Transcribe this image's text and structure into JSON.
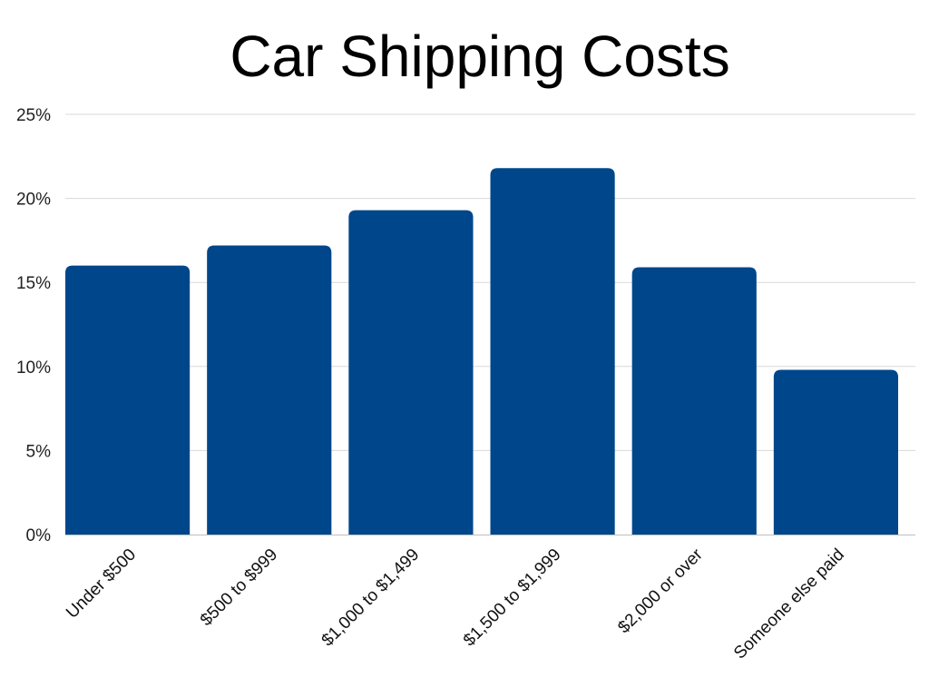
{
  "chart_data": {
    "type": "bar",
    "title": "Car Shipping Costs",
    "xlabel": "",
    "ylabel": "",
    "categories": [
      "Under $500",
      "$500 to $999",
      "$1,000 to $1,499",
      "$1,500 to $1,999",
      "$2,000 or over",
      "Someone else paid"
    ],
    "values": [
      16.0,
      17.2,
      19.3,
      21.8,
      15.9,
      9.8
    ],
    "ylim": [
      0,
      25
    ],
    "yticks": [
      "0%",
      "5%",
      "10%",
      "15%",
      "20%",
      "25%"
    ],
    "grid": true,
    "legend": "none",
    "bar_color": "#00468b",
    "grid_color": "#d9d9d9"
  }
}
